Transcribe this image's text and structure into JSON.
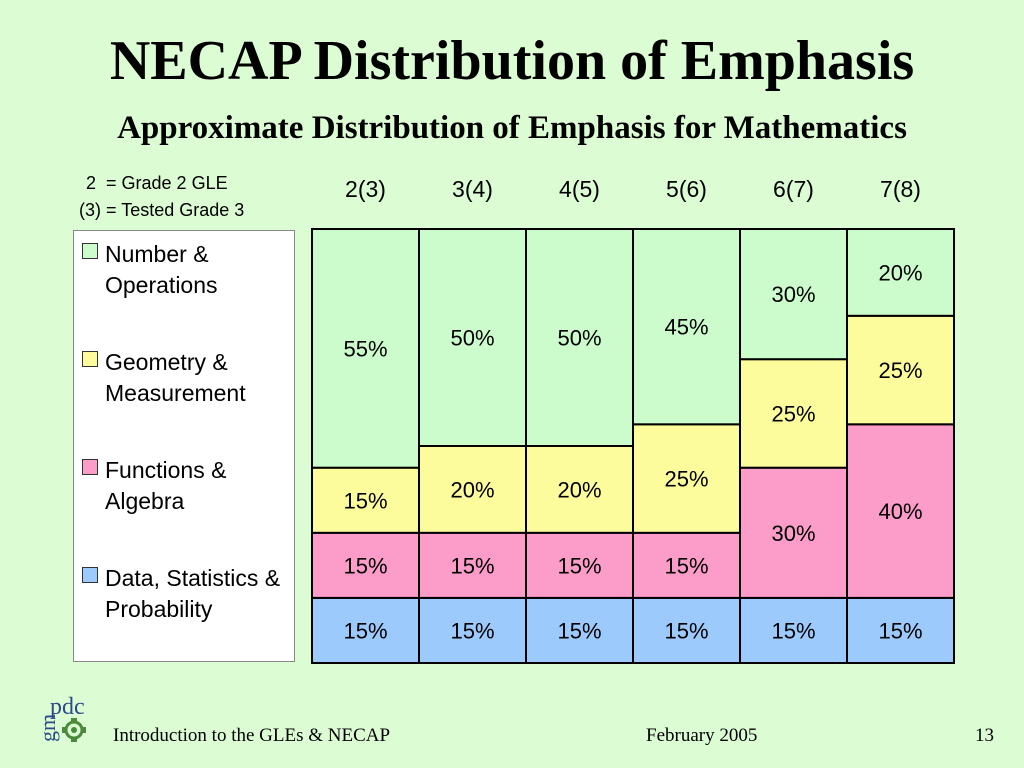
{
  "slide": {
    "title": "NECAP Distribution of Emphasis",
    "subtitle": "Approximate Distribution of Emphasis for Mathematics",
    "note_line1": "2  = Grade 2 GLE",
    "note_line2": "(3) = Tested Grade 3",
    "page_number": "13"
  },
  "footer": {
    "left": "Introduction to the GLEs & NECAP",
    "date": "February 2005"
  },
  "logo": {
    "top_text": "pdc",
    "side_text": "gm"
  },
  "legend": {
    "items": [
      {
        "label": "Number & Operations",
        "color": "#ccfccc"
      },
      {
        "label": "Geometry & Measurement",
        "color": "#fcfc9c"
      },
      {
        "label": "Functions & Algebra",
        "color": "#fc9cc8"
      },
      {
        "label": "Data, Statistics & Probability",
        "color": "#9ccafc"
      }
    ]
  },
  "chart_data": {
    "type": "bar",
    "stacked": true,
    "categories": [
      "2(3)",
      "3(4)",
      "4(5)",
      "5(6)",
      "6(7)",
      "7(8)"
    ],
    "series": [
      {
        "name": "Number & Operations",
        "color": "#ccfccc",
        "values": [
          55,
          50,
          50,
          45,
          30,
          20
        ]
      },
      {
        "name": "Geometry & Measurement",
        "color": "#fcfc9c",
        "values": [
          15,
          20,
          20,
          25,
          25,
          25
        ]
      },
      {
        "name": "Functions & Algebra",
        "color": "#fc9cc8",
        "values": [
          15,
          15,
          15,
          15,
          30,
          40
        ]
      },
      {
        "name": "Data, Statistics & Probability",
        "color": "#9ccafc",
        "values": [
          15,
          15,
          15,
          15,
          15,
          15
        ]
      }
    ],
    "value_suffix": "%",
    "ylim": [
      0,
      100
    ]
  }
}
